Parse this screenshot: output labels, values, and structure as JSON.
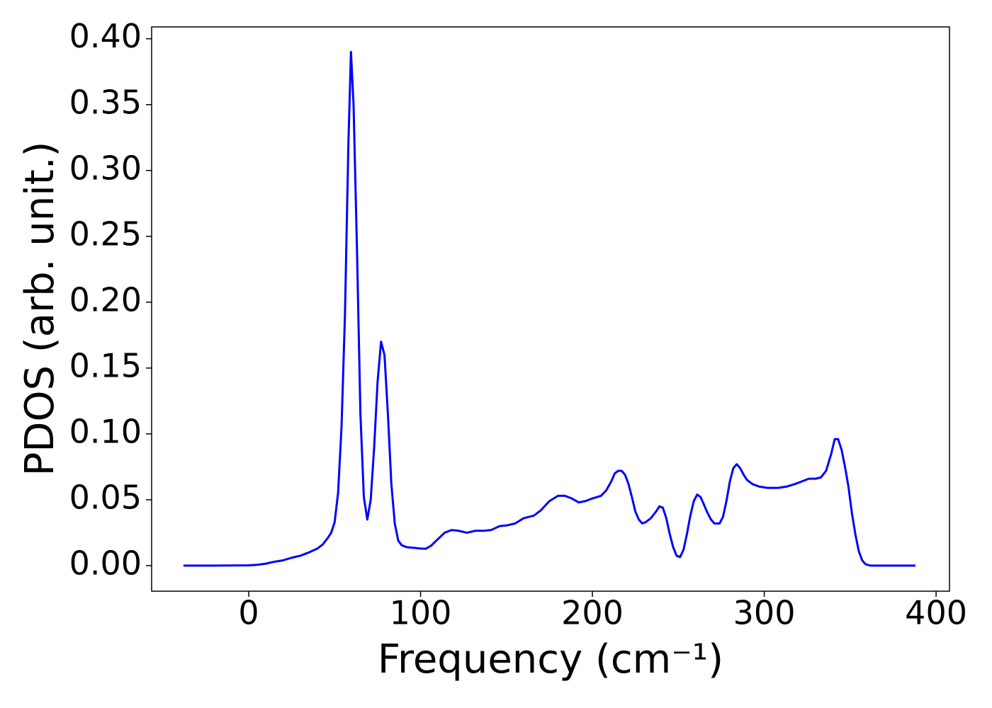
{
  "chart_data": {
    "type": "line",
    "x_label": "Frequency (cm⁻¹)",
    "y_label": "PDOS (arb. unit.)",
    "x": [
      -38,
      -20,
      0,
      5,
      10,
      15,
      20,
      25,
      30,
      35,
      40,
      43,
      46,
      48,
      50,
      52,
      54,
      56,
      58,
      59.5,
      61,
      63,
      65,
      67,
      69,
      71,
      73,
      75,
      77,
      79,
      81,
      83,
      85,
      87,
      89,
      92,
      96,
      100,
      103,
      106,
      110,
      114,
      118,
      122,
      127,
      132,
      137,
      141,
      146,
      150,
      155,
      160,
      166,
      170,
      175,
      180,
      184,
      188,
      192,
      196,
      200,
      205,
      208,
      211,
      213,
      215,
      217,
      219,
      221,
      223,
      225,
      227,
      229,
      231,
      234,
      237,
      239,
      241,
      243,
      245,
      247,
      249,
      251,
      253,
      255,
      257,
      259,
      261,
      263,
      265,
      267,
      269,
      271,
      274,
      276,
      278,
      280,
      282,
      284,
      286,
      288,
      290,
      293,
      297,
      302,
      308,
      313,
      318,
      322,
      326,
      330,
      333,
      336,
      339,
      341,
      343,
      345,
      347,
      349,
      351,
      353,
      355,
      357,
      359,
      362,
      388
    ],
    "series": [
      {
        "name": "PDOS",
        "color": "#0000ff",
        "values": [
          0,
          0,
          0.0002,
          0.0006,
          0.0015,
          0.003,
          0.004,
          0.006,
          0.0075,
          0.01,
          0.013,
          0.016,
          0.021,
          0.025,
          0.033,
          0.055,
          0.105,
          0.19,
          0.32,
          0.39,
          0.35,
          0.24,
          0.115,
          0.052,
          0.035,
          0.05,
          0.09,
          0.14,
          0.17,
          0.16,
          0.115,
          0.062,
          0.032,
          0.019,
          0.0155,
          0.014,
          0.0135,
          0.013,
          0.0128,
          0.015,
          0.02,
          0.025,
          0.027,
          0.0265,
          0.025,
          0.0265,
          0.0265,
          0.027,
          0.03,
          0.0305,
          0.032,
          0.036,
          0.038,
          0.042,
          0.049,
          0.053,
          0.053,
          0.051,
          0.048,
          0.049,
          0.051,
          0.053,
          0.057,
          0.064,
          0.07,
          0.072,
          0.072,
          0.069,
          0.062,
          0.052,
          0.041,
          0.035,
          0.032,
          0.033,
          0.036,
          0.041,
          0.045,
          0.044,
          0.036,
          0.024,
          0.014,
          0.0075,
          0.0065,
          0.012,
          0.024,
          0.038,
          0.049,
          0.054,
          0.052,
          0.046,
          0.04,
          0.035,
          0.032,
          0.032,
          0.037,
          0.049,
          0.064,
          0.074,
          0.077,
          0.074,
          0.069,
          0.065,
          0.062,
          0.06,
          0.059,
          0.059,
          0.06,
          0.062,
          0.064,
          0.066,
          0.066,
          0.067,
          0.072,
          0.085,
          0.096,
          0.096,
          0.088,
          0.075,
          0.06,
          0.04,
          0.024,
          0.011,
          0.004,
          0.001,
          0,
          0
        ]
      }
    ],
    "xlim": [
      -56.5,
      407.8
    ],
    "ylim": [
      -0.0194,
      0.409
    ],
    "xticks": [
      0,
      100,
      200,
      300,
      400
    ],
    "yticks": [
      {
        "value": 0,
        "label": "0.00"
      },
      {
        "value": 0.05,
        "label": "0.05"
      },
      {
        "value": 0.1,
        "label": "0.10"
      },
      {
        "value": 0.15,
        "label": "0.15"
      },
      {
        "value": 0.2,
        "label": "0.20"
      },
      {
        "value": 0.25,
        "label": "0.25"
      },
      {
        "value": 0.3,
        "label": "0.30"
      },
      {
        "value": 0.35,
        "label": "0.35"
      },
      {
        "value": 0.4,
        "label": "0.40"
      }
    ],
    "grid": false
  }
}
